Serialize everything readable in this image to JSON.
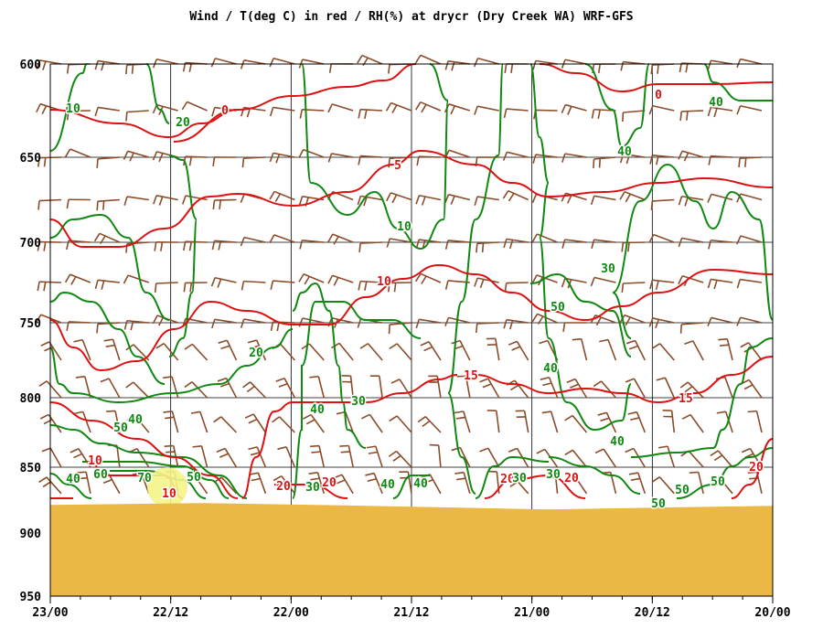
{
  "chart_data": {
    "type": "line",
    "title": "Wind / T(deg C) in red / RH(%) at drycr (Dry Creek WA)  WRF-GFS",
    "x_ticks": [
      "23/00",
      "22/12",
      "22/00",
      "21/12",
      "21/00",
      "20/12",
      "20/00"
    ],
    "y_ticks": [
      600,
      650,
      700,
      750,
      800,
      850,
      900,
      950
    ],
    "ylim": [
      600,
      950
    ],
    "y_scale": "pressure (inverted)",
    "grid": true,
    "terrain_pressure": 880,
    "colors": {
      "temperature": "#dd1111",
      "rh": "#118811",
      "wind": "#8b4c2a",
      "terrain": "#ebb745",
      "highlight": "#f4f488"
    },
    "series": [
      {
        "name": "T(deg C)",
        "contour_labels": [
          "0",
          "0",
          "5",
          "10",
          "15",
          "10",
          "10",
          "20",
          "20",
          "20",
          "20",
          "20",
          "15"
        ]
      },
      {
        "name": "RH(%)",
        "contour_labels": [
          "10",
          "20",
          "10",
          "40",
          "40",
          "30",
          "50",
          "20",
          "40",
          "30",
          "40",
          "40",
          "50",
          "60",
          "70",
          "40",
          "30",
          "30",
          "40",
          "40",
          "30",
          "50",
          "50",
          "50",
          "50",
          "40"
        ]
      }
    ]
  }
}
